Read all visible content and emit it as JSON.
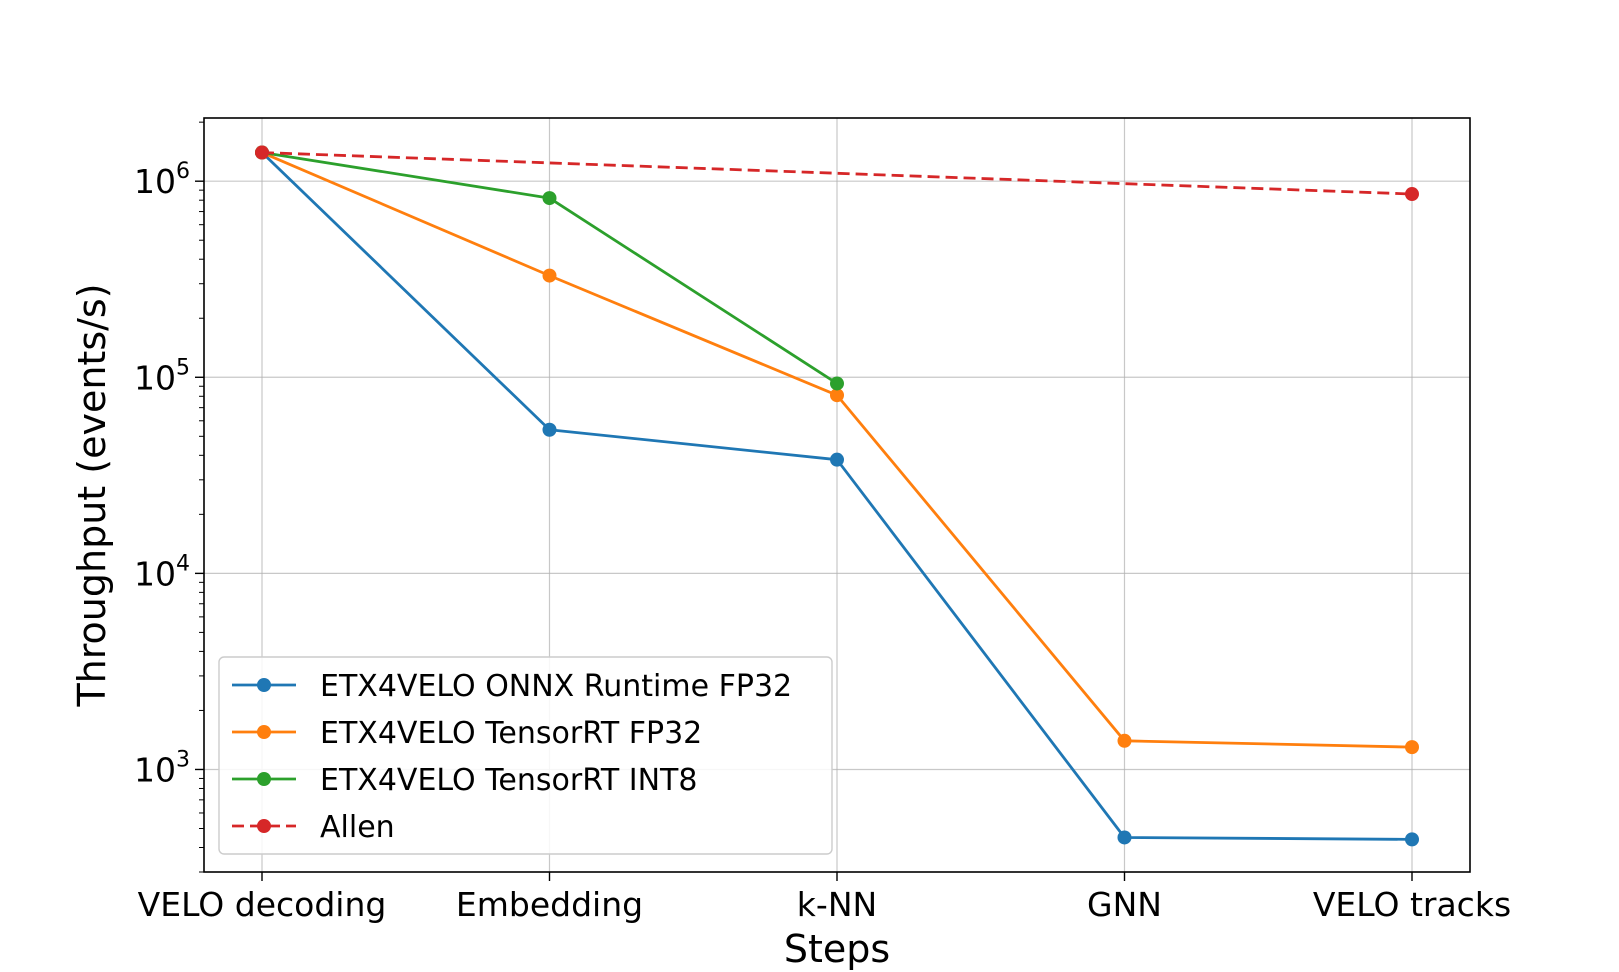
{
  "chart_data": {
    "type": "line",
    "title": "",
    "xlabel": "Steps",
    "ylabel": "Throughput (events/s)",
    "yscale": "log",
    "ylim": [
      300,
      2100000
    ],
    "grid": true,
    "legend_position": "lower-left",
    "categories": [
      "VELO decoding",
      "Embedding",
      "k-NN",
      "GNN",
      "VELO tracks"
    ],
    "y_ticks": [
      {
        "value": 1000,
        "base": "10",
        "exp": "3"
      },
      {
        "value": 10000,
        "base": "10",
        "exp": "4"
      },
      {
        "value": 100000,
        "base": "10",
        "exp": "5"
      },
      {
        "value": 1000000,
        "base": "10",
        "exp": "6"
      }
    ],
    "series": [
      {
        "name": "ETX4VELO ONNX Runtime FP32",
        "color": "#1f77b4",
        "dashed": false,
        "values": [
          1400000,
          54000,
          38000,
          450,
          440
        ]
      },
      {
        "name": "ETX4VELO TensorRT FP32",
        "color": "#ff7f0e",
        "dashed": false,
        "values": [
          1400000,
          330000,
          81000,
          1400,
          1300
        ]
      },
      {
        "name": "ETX4VELO TensorRT INT8",
        "color": "#2ca02c",
        "dashed": false,
        "values": [
          1400000,
          820000,
          93000,
          null,
          null
        ]
      },
      {
        "name": "Allen",
        "color": "#d62728",
        "dashed": true,
        "values": [
          1400000,
          null,
          null,
          null,
          860000
        ]
      }
    ]
  }
}
